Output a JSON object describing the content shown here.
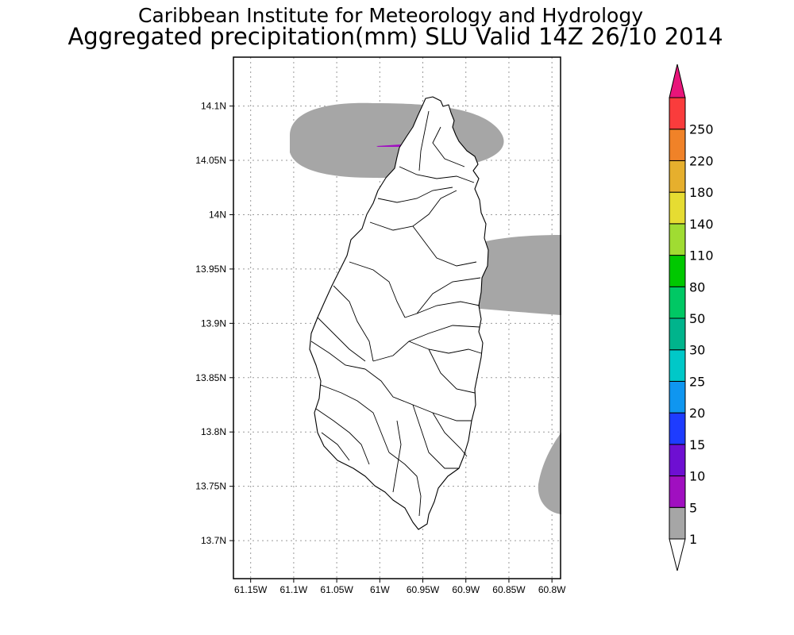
{
  "header": {
    "title": "Caribbean Institute for Meteorology and Hydrology",
    "subtitle": "Aggregated precipitation(mm) SLU Valid 14Z 26/10 2014"
  },
  "map": {
    "region": "Saint Lucia",
    "lon_range": [
      -61.17,
      -60.79
    ],
    "lat_range": [
      13.665,
      14.145
    ],
    "x_ticks": [
      {
        "label": "61.15W",
        "lon": -61.15
      },
      {
        "label": "61.1W",
        "lon": -61.1
      },
      {
        "label": "61.05W",
        "lon": -61.05
      },
      {
        "label": "61W",
        "lon": -61.0
      },
      {
        "label": "60.95W",
        "lon": -60.95
      },
      {
        "label": "60.9W",
        "lon": -60.9
      },
      {
        "label": "60.85W",
        "lon": -60.85
      },
      {
        "label": "60.8W",
        "lon": -60.8
      }
    ],
    "y_ticks": [
      {
        "label": "14.1N",
        "lat": 14.1
      },
      {
        "label": "14.05N",
        "lat": 14.05
      },
      {
        "label": "14N",
        "lat": 14.0
      },
      {
        "label": "13.95N",
        "lat": 13.95
      },
      {
        "label": "13.9N",
        "lat": 13.9
      },
      {
        "label": "13.85N",
        "lat": 13.85
      },
      {
        "label": "13.8N",
        "lat": 13.8
      },
      {
        "label": "13.75N",
        "lat": 13.75
      },
      {
        "label": "13.7N",
        "lat": 13.7
      }
    ]
  },
  "colorbar": {
    "units": "mm",
    "levels": [
      "1",
      "5",
      "10",
      "15",
      "20",
      "25",
      "30",
      "50",
      "80",
      "110",
      "140",
      "180",
      "220",
      "250"
    ],
    "colors": [
      "#a6a6a6",
      "#a00fc0",
      "#6e0fd2",
      "#1e3cff",
      "#0f96f0",
      "#00c8c8",
      "#00b48c",
      "#00c864",
      "#00c800",
      "#a0dc32",
      "#e6dc32",
      "#e6af2d",
      "#f08228",
      "#fa3c3c"
    ],
    "below_color": "#ffffff",
    "above_color": "#e8157a"
  }
}
